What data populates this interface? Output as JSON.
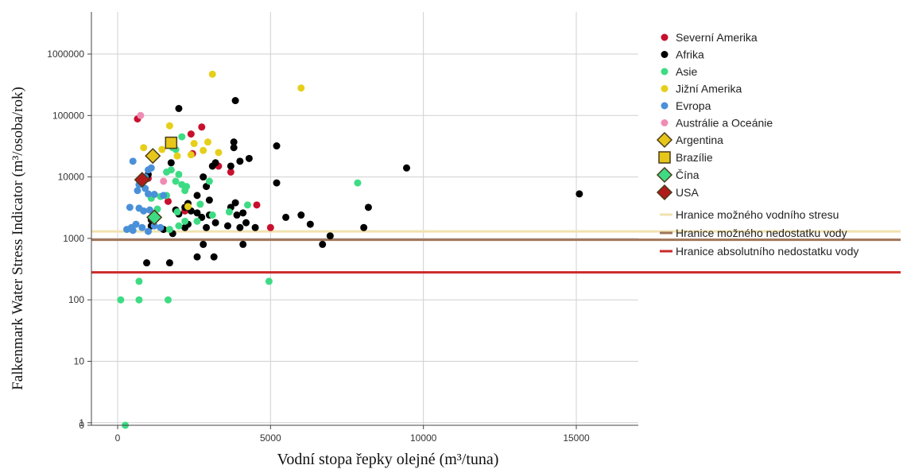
{
  "chart_data": {
    "type": "scatter",
    "xlabel": "Vodní stopa řepky olejné (m³/tuna)",
    "ylabel": "Falkenmark Water Stress Indicator (m³/osoba/rok)",
    "xlim": [
      -800,
      17000
    ],
    "x_ticks": [
      "0",
      "5000",
      "10000",
      "15000"
    ],
    "x_tick_values": [
      0,
      5000,
      10000,
      15000
    ],
    "y_tick_values": [
      0,
      1,
      10,
      100,
      1000,
      10000,
      100000,
      1000000
    ],
    "y_ticks": [
      "0",
      "1",
      "10",
      "100",
      "1000",
      "10000",
      "100000",
      "1000000"
    ],
    "y_scale": "log",
    "grid": true,
    "legend_position": "right",
    "series": [
      {
        "name": "Severní Amerika",
        "color": "#c8102e",
        "marker": "circle",
        "points": [
          [
            650,
            88000
          ],
          [
            2400,
            50000
          ],
          [
            2750,
            65000
          ],
          [
            3300,
            15000
          ],
          [
            3700,
            12000
          ],
          [
            4550,
            3500
          ],
          [
            5000,
            1500
          ],
          [
            2200,
            2800
          ],
          [
            1650,
            4000
          ],
          [
            1000,
            9500
          ],
          [
            2450,
            24000
          ]
        ]
      },
      {
        "name": "Afrika",
        "color": "#000000",
        "marker": "circle",
        "points": [
          [
            2000,
            130000
          ],
          [
            3850,
            175000
          ],
          [
            5200,
            32000
          ],
          [
            3800,
            37000
          ],
          [
            3800,
            30000
          ],
          [
            4300,
            20000
          ],
          [
            4000,
            18000
          ],
          [
            3700,
            15000
          ],
          [
            3200,
            17000
          ],
          [
            3100,
            15000
          ],
          [
            2800,
            10000
          ],
          [
            5200,
            8000
          ],
          [
            2600,
            5000
          ],
          [
            3000,
            4200
          ],
          [
            2200,
            3200
          ],
          [
            1900,
            2900
          ],
          [
            2600,
            2600
          ],
          [
            3000,
            2400
          ],
          [
            3900,
            2400
          ],
          [
            4100,
            2600
          ],
          [
            3700,
            3200
          ],
          [
            3850,
            3800
          ],
          [
            4200,
            1800
          ],
          [
            4500,
            1500
          ],
          [
            4000,
            1500
          ],
          [
            5500,
            2200
          ],
          [
            6000,
            2400
          ],
          [
            6300,
            1700
          ],
          [
            6950,
            1100
          ],
          [
            6700,
            800
          ],
          [
            8050,
            1500
          ],
          [
            8200,
            3200
          ],
          [
            4100,
            800
          ],
          [
            3150,
            500
          ],
          [
            2600,
            500
          ],
          [
            2800,
            800
          ],
          [
            1700,
            400
          ],
          [
            950,
            400
          ],
          [
            1100,
            2000
          ],
          [
            1800,
            1200
          ],
          [
            2300,
            1700
          ],
          [
            2900,
            1500
          ],
          [
            2000,
            2500
          ],
          [
            1100,
            1600
          ],
          [
            1500,
            1400
          ],
          [
            2300,
            3700
          ],
          [
            2400,
            2800
          ],
          [
            2750,
            2200
          ],
          [
            3200,
            1800
          ],
          [
            3600,
            1600
          ],
          [
            9450,
            14000
          ],
          [
            15100,
            5300
          ],
          [
            2200,
            1500
          ],
          [
            1750,
            17000
          ],
          [
            2900,
            7000
          ],
          [
            1000,
            11000
          ]
        ]
      },
      {
        "name": "Asie",
        "color": "#3ddc84",
        "marker": "circle",
        "points": [
          [
            250,
            0.01
          ],
          [
            100,
            100
          ],
          [
            700,
            100
          ],
          [
            1650,
            100
          ],
          [
            700,
            200
          ],
          [
            4950,
            200
          ],
          [
            7850,
            8000
          ],
          [
            2100,
            45000
          ],
          [
            1800,
            30000
          ],
          [
            1900,
            28000
          ],
          [
            1750,
            13000
          ],
          [
            1600,
            12000
          ],
          [
            2000,
            11000
          ],
          [
            2250,
            7000
          ],
          [
            1900,
            8500
          ],
          [
            2100,
            7500
          ],
          [
            2200,
            6000
          ],
          [
            1600,
            5000
          ],
          [
            1400,
            4800
          ],
          [
            1100,
            4500
          ],
          [
            1300,
            3000
          ],
          [
            1950,
            2700
          ],
          [
            2200,
            1900
          ],
          [
            2600,
            1900
          ],
          [
            3650,
            2700
          ],
          [
            4250,
            3500
          ],
          [
            2000,
            1600
          ],
          [
            1700,
            1400
          ],
          [
            3000,
            8500
          ],
          [
            2700,
            3600
          ],
          [
            3100,
            2400
          ]
        ]
      },
      {
        "name": "Jižní Amerika",
        "color": "#e6cf1a",
        "marker": "circle",
        "points": [
          [
            3100,
            470000
          ],
          [
            6000,
            280000
          ],
          [
            1700,
            68000
          ],
          [
            850,
            30000
          ],
          [
            1450,
            28000
          ],
          [
            2500,
            35000
          ],
          [
            2800,
            27000
          ],
          [
            2950,
            37000
          ],
          [
            3300,
            25000
          ],
          [
            1950,
            22000
          ],
          [
            2400,
            23000
          ],
          [
            2300,
            3300
          ]
        ]
      },
      {
        "name": "Evropa",
        "color": "#4a90d9",
        "marker": "circle",
        "points": [
          [
            500,
            18000
          ],
          [
            1000,
            13000
          ],
          [
            1100,
            14000
          ],
          [
            900,
            10000
          ],
          [
            650,
            6000
          ],
          [
            700,
            7500
          ],
          [
            900,
            6500
          ],
          [
            1000,
            5300
          ],
          [
            1200,
            5200
          ],
          [
            1500,
            5000
          ],
          [
            400,
            3200
          ],
          [
            700,
            3100
          ],
          [
            850,
            2800
          ],
          [
            1050,
            2900
          ],
          [
            450,
            1500
          ],
          [
            600,
            1700
          ],
          [
            800,
            1500
          ],
          [
            1000,
            1300
          ],
          [
            1200,
            1600
          ],
          [
            1400,
            1500
          ],
          [
            500,
            1350
          ],
          [
            300,
            1400
          ]
        ]
      },
      {
        "name": "Austrálie a Oceánie",
        "color": "#f08cb4",
        "marker": "circle",
        "points": [
          [
            750,
            100000
          ],
          [
            1500,
            8500
          ]
        ]
      },
      {
        "name": "Argentina",
        "color": "#e6c619",
        "marker": "diamond",
        "points": [
          [
            1150,
            22000
          ]
        ]
      },
      {
        "name": "Brazílie",
        "color": "#e6c619",
        "marker": "square",
        "points": [
          [
            1750,
            36000
          ]
        ]
      },
      {
        "name": "Čína",
        "color": "#3ddc84",
        "marker": "diamond",
        "points": [
          [
            1200,
            2200
          ]
        ]
      },
      {
        "name": "USA",
        "color": "#b01c1c",
        "marker": "diamond",
        "points": [
          [
            800,
            9000
          ]
        ]
      }
    ],
    "reference_lines": [
      {
        "name": "Hranice možného vodního stresu",
        "y": 1300,
        "color": "#f0e2b0"
      },
      {
        "name": "Hranice možného nedostatku vody",
        "y": 950,
        "color": "#a0755a"
      },
      {
        "name": "Hranice absolutního nedostatku vody",
        "y": 280,
        "color": "#cc2a2a"
      }
    ]
  }
}
